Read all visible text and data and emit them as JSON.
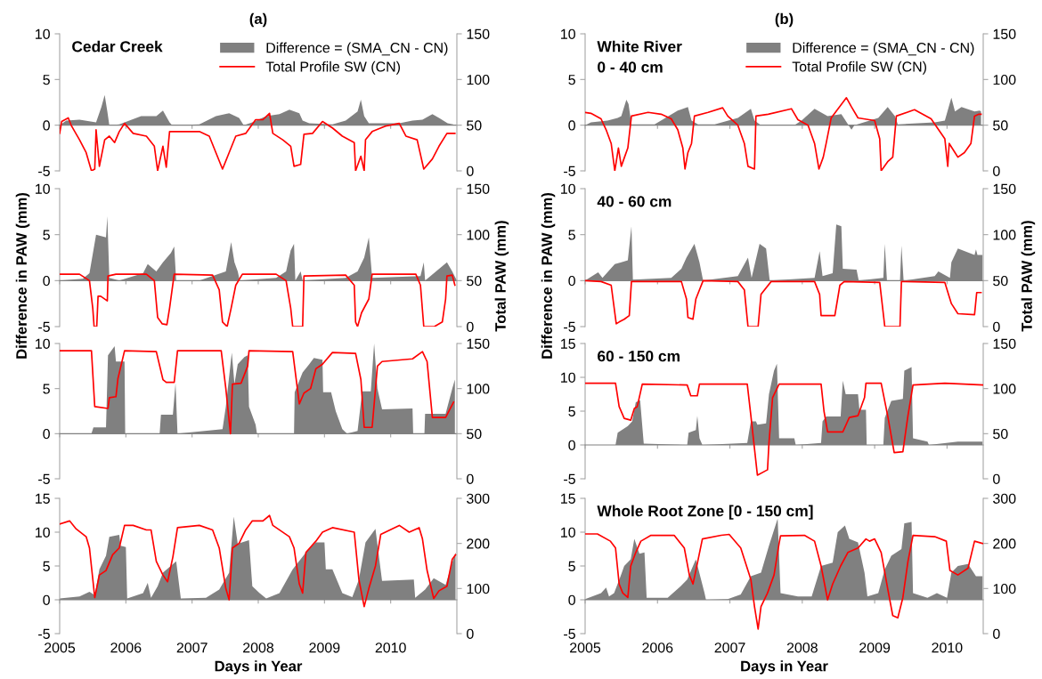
{
  "chart_data": [
    {
      "type": "line",
      "title": "(a)",
      "annotations": [
        "Cedar Creek"
      ],
      "legend": "top right",
      "tick_labels": "y",
      "xlim": [
        2005,
        2011
      ],
      "xticks": [
        2005,
        2006,
        2007,
        2008,
        2009,
        2010
      ],
      "ylim": [
        -5,
        10
      ],
      "yticks": [
        -5,
        0,
        5,
        10
      ],
      "y2lim": [
        0,
        150
      ],
      "y2ticks": [
        0,
        50,
        100,
        150
      ],
      "series": [
        {
          "name": "Difference = (SMA_CN - CN)",
          "type": "area",
          "color": "#808080",
          "x": [
            2005.0,
            2005.1,
            2005.3,
            2005.55,
            2005.63,
            2005.68,
            2005.72,
            2005.75,
            2005.9,
            2006.23,
            2006.46,
            2006.56,
            2006.66,
            2006.7,
            2007.11,
            2007.36,
            2007.56,
            2007.71,
            2007.78,
            2007.91,
            2008.12,
            2008.32,
            2008.47,
            2008.62,
            2008.67,
            2008.77,
            2009.12,
            2009.32,
            2009.5,
            2009.55,
            2009.6,
            2009.67,
            2010.13,
            2010.33,
            2010.48,
            2010.63,
            2010.73,
            2010.86,
            2011.0
          ],
          "values": [
            0,
            0.5,
            0.6,
            0.3,
            2.0,
            3.3,
            1.5,
            0,
            0.1,
            1.0,
            1.0,
            1.6,
            0.3,
            0,
            0.1,
            1.0,
            1.3,
            0.8,
            0,
            0.3,
            1.0,
            1.2,
            1.7,
            1.3,
            0.5,
            0.2,
            0.1,
            0.5,
            1.5,
            2.8,
            1.0,
            0.2,
            0.2,
            0.5,
            0.6,
            1.2,
            0.8,
            0.2,
            0
          ]
        },
        {
          "name": "Total Profile SW (CN)",
          "type": "line",
          "axis": "y2",
          "color": "#ff0000",
          "x": [
            2005.0,
            2005.03,
            2005.13,
            2005.18,
            2005.3,
            2005.4,
            2005.48,
            2005.53,
            2005.55,
            2005.6,
            2005.68,
            2005.75,
            2005.83,
            2005.9,
            2005.98,
            2006.11,
            2006.31,
            2006.43,
            2006.48,
            2006.56,
            2006.61,
            2006.66,
            2006.81,
            2007.11,
            2007.26,
            2007.36,
            2007.46,
            2007.56,
            2007.66,
            2007.81,
            2007.96,
            2008.07,
            2008.17,
            2008.22,
            2008.37,
            2008.49,
            2008.54,
            2008.64,
            2008.69,
            2008.82,
            2008.97,
            2009.12,
            2009.27,
            2009.45,
            2009.47,
            2009.55,
            2009.6,
            2009.62,
            2009.72,
            2009.92,
            2010.13,
            2010.23,
            2010.4,
            2010.5,
            2010.63,
            2010.73,
            2010.85,
            2010.97
          ],
          "values": [
            41,
            54,
            58,
            49,
            34,
            20,
            0,
            2,
            45,
            5,
            34,
            38,
            31,
            43,
            52,
            41,
            38,
            27,
            0,
            27,
            4,
            43,
            43,
            43,
            38,
            20,
            2,
            20,
            38,
            41,
            56,
            56,
            63,
            41,
            34,
            27,
            5,
            7,
            40,
            41,
            54,
            47,
            38,
            31,
            0,
            16,
            0,
            34,
            43,
            49,
            52,
            38,
            34,
            2,
            13,
            27,
            41,
            41
          ]
        }
      ]
    },
    {
      "type": "line",
      "title": "(b)",
      "annotations": [
        "White River",
        "0 - 40 cm"
      ],
      "legend": "top right",
      "tick_labels": "y",
      "xlim": [
        2005,
        2010.5
      ],
      "xticks": [
        2005,
        2006,
        2007,
        2008,
        2009,
        2010
      ],
      "ylim": [
        -5,
        10
      ],
      "yticks": [
        -5,
        0,
        5,
        10
      ],
      "y2lim": [
        0,
        150
      ],
      "y2ticks": [
        0,
        50,
        100,
        150
      ],
      "series": [
        {
          "name": "Difference = (SMA_CN - CN)",
          "type": "area",
          "color": "#808080",
          "x": [
            2005.0,
            2005.08,
            2005.31,
            2005.45,
            2005.5,
            2005.57,
            2005.6,
            2005.64,
            2005.96,
            2006.28,
            2006.42,
            2006.47,
            2006.56,
            2006.79,
            2007.11,
            2007.29,
            2007.34,
            2007.43,
            2007.89,
            2007.99,
            2008.17,
            2008.35,
            2008.54,
            2008.68,
            2008.72,
            2009.05,
            2009.18,
            2009.28,
            2009.32,
            2009.83,
            2009.97,
            2010.06,
            2010.11,
            2010.2,
            2010.38,
            2010.45,
            2010.47
          ],
          "values": [
            0,
            0.3,
            0.5,
            0.8,
            1.0,
            2.8,
            2.3,
            0.1,
            0.1,
            1.6,
            2.0,
            0.5,
            0.1,
            0.1,
            0.8,
            1.8,
            0.5,
            0,
            0,
            0.5,
            1.8,
            1.0,
            1.2,
            -0.5,
            0,
            0.8,
            2.0,
            1.0,
            0.1,
            0.3,
            0.5,
            3.0,
            1.5,
            2.0,
            1.5,
            1.6,
            1.5
          ]
        },
        {
          "name": "Total Profile SW (CN)",
          "type": "line",
          "axis": "y2",
          "color": "#ff0000",
          "x": [
            2005.0,
            2005.08,
            2005.22,
            2005.29,
            2005.36,
            2005.41,
            2005.46,
            2005.5,
            2005.54,
            2005.59,
            2005.64,
            2005.87,
            2006.05,
            2006.19,
            2006.28,
            2006.35,
            2006.38,
            2006.42,
            2006.47,
            2006.51,
            2006.7,
            2006.9,
            2006.97,
            2007.11,
            2007.2,
            2007.25,
            2007.34,
            2007.36,
            2007.53,
            2007.85,
            2007.94,
            2008.08,
            2008.17,
            2008.23,
            2008.29,
            2008.33,
            2008.4,
            2008.61,
            2008.68,
            2008.77,
            2009.0,
            2009.07,
            2009.09,
            2009.18,
            2009.25,
            2009.3,
            2009.55,
            2009.78,
            2009.97,
            2010.01,
            2010.03,
            2010.11,
            2010.15,
            2010.24,
            2010.33,
            2010.38,
            2010.44,
            2010.47
          ],
          "values": [
            64,
            63,
            57,
            45,
            30,
            0,
            25,
            5,
            14,
            25,
            60,
            64,
            62,
            57,
            45,
            25,
            2,
            20,
            30,
            60,
            64,
            69,
            60,
            50,
            30,
            5,
            2,
            60,
            62,
            68,
            56,
            50,
            30,
            2,
            15,
            30,
            58,
            80,
            70,
            58,
            55,
            35,
            0,
            10,
            15,
            60,
            67,
            57,
            35,
            5,
            30,
            20,
            15,
            20,
            30,
            60,
            62,
            62
          ]
        }
      ]
    },
    {
      "type": "line",
      "tick_labels": "y",
      "xlim": [
        2005,
        2011
      ],
      "xticks": [
        2005,
        2006,
        2007,
        2008,
        2009,
        2010
      ],
      "ylim": [
        -5,
        10
      ],
      "yticks": [
        -5,
        0,
        5,
        10
      ],
      "y2lim": [
        0,
        150
      ],
      "y2ticks": [
        0,
        50,
        100,
        150
      ],
      "series": [
        {
          "type": "area",
          "color": "#808080",
          "x": [
            2005.0,
            2005.35,
            2005.45,
            2005.55,
            2005.7,
            2005.72,
            2005.75,
            2005.9,
            2006.26,
            2006.33,
            2006.46,
            2006.56,
            2006.68,
            2006.73,
            2006.76,
            2007.11,
            2007.51,
            2007.59,
            2007.64,
            2007.69,
            2007.72,
            2008.27,
            2008.42,
            2008.49,
            2008.54,
            2008.56,
            2008.64,
            2008.67,
            2009.32,
            2009.5,
            2009.6,
            2009.67,
            2009.72,
            2010.45,
            2010.5,
            2010.52,
            2010.85,
            2010.93,
            2011.0
          ],
          "values": [
            0,
            0.2,
            0.8,
            5.0,
            4.7,
            7.0,
            0.3,
            0,
            0.8,
            1.8,
            1.0,
            2.0,
            3.0,
            3.7,
            0,
            0,
            1.0,
            4.2,
            2.0,
            1.0,
            0,
            0.3,
            1.0,
            3.3,
            4.0,
            0,
            1.0,
            0,
            0.3,
            1.0,
            2.5,
            4.7,
            0.3,
            0.5,
            2.0,
            0,
            2.0,
            1.0,
            0
          ]
        },
        {
          "type": "line",
          "axis": "y2",
          "color": "#ff0000",
          "x": [
            2005.0,
            2005.3,
            2005.45,
            2005.5,
            2005.52,
            2005.56,
            2005.58,
            2005.62,
            2005.72,
            2005.73,
            2005.85,
            2006.31,
            2006.43,
            2006.48,
            2006.55,
            2006.62,
            2006.66,
            2006.73,
            2007.31,
            2007.41,
            2007.46,
            2007.53,
            2007.59,
            2007.66,
            2007.76,
            2008.27,
            2008.42,
            2008.49,
            2008.52,
            2008.67,
            2008.69,
            2009.32,
            2009.45,
            2009.47,
            2009.5,
            2009.56,
            2009.67,
            2009.72,
            2010.38,
            2010.45,
            2010.5,
            2010.66,
            2010.78,
            2010.83,
            2010.85,
            2010.93,
            2010.97
          ],
          "values": [
            57,
            57,
            50,
            20,
            0,
            0,
            33,
            33,
            28,
            55,
            57,
            57,
            50,
            10,
            3,
            2,
            20,
            57,
            56,
            40,
            5,
            0,
            20,
            45,
            57,
            57,
            50,
            20,
            0,
            0,
            55,
            56,
            45,
            5,
            0,
            15,
            30,
            57,
            57,
            45,
            0,
            0,
            5,
            30,
            55,
            56,
            45
          ]
        }
      ]
    },
    {
      "type": "line",
      "annotations": [
        "40 - 60 cm"
      ],
      "tick_labels": "y",
      "xlim": [
        2005,
        2010.5
      ],
      "xticks": [
        2005,
        2006,
        2007,
        2008,
        2009,
        2010
      ],
      "ylim": [
        -5,
        10
      ],
      "yticks": [
        -5,
        0,
        5,
        10
      ],
      "y2lim": [
        0,
        150
      ],
      "y2ticks": [
        0,
        50,
        100,
        150
      ],
      "series": [
        {
          "type": "area",
          "color": "#808080",
          "x": [
            2005.0,
            2005.18,
            2005.24,
            2005.41,
            2005.5,
            2005.59,
            2005.64,
            2005.66,
            2006.19,
            2006.33,
            2006.4,
            2006.51,
            2006.58,
            2006.63,
            2007.11,
            2007.25,
            2007.3,
            2007.41,
            2007.5,
            2007.55,
            2008.17,
            2008.24,
            2008.28,
            2008.42,
            2008.47,
            2008.54,
            2008.56,
            2008.75,
            2008.78,
            2009.12,
            2009.14,
            2009.17,
            2009.35,
            2009.37,
            2009.4,
            2009.83,
            2009.88,
            2010.04,
            2010.06,
            2010.15,
            2010.38,
            2010.4,
            2010.42,
            2010.49
          ],
          "values": [
            0,
            0.9,
            0.3,
            1.8,
            2.0,
            2.2,
            5.9,
            0.1,
            0.3,
            1.3,
            2.5,
            4.0,
            2.0,
            0,
            0.5,
            2.5,
            0.3,
            4.0,
            3.5,
            0,
            0.3,
            3.2,
            0.5,
            0.8,
            6.1,
            5.9,
            1.3,
            1.2,
            0,
            0.3,
            4.0,
            0,
            0,
            3.8,
            0,
            0.5,
            1.0,
            0.3,
            2.0,
            3.5,
            2.8,
            3.4,
            2.8,
            2.8
          ]
        },
        {
          "type": "line",
          "axis": "y2",
          "color": "#ff0000",
          "x": [
            2005.0,
            2005.22,
            2005.36,
            2005.43,
            2005.47,
            2005.54,
            2005.61,
            2005.64,
            2006.33,
            2006.4,
            2006.42,
            2006.49,
            2006.53,
            2006.63,
            2007.11,
            2007.2,
            2007.25,
            2007.39,
            2007.43,
            2007.57,
            2008.17,
            2008.24,
            2008.26,
            2008.45,
            2008.52,
            2008.58,
            2009.07,
            2009.14,
            2009.35,
            2009.37,
            2009.97,
            2010.06,
            2010.15,
            2010.38,
            2010.41,
            2010.47
          ],
          "values": [
            50,
            49,
            45,
            3,
            5,
            8,
            12,
            49,
            49,
            30,
            10,
            8,
            30,
            50,
            49,
            40,
            0,
            0,
            35,
            49,
            49,
            35,
            12,
            12,
            45,
            49,
            48,
            0,
            0,
            49,
            48,
            25,
            14,
            13,
            37,
            37
          ]
        }
      ]
    },
    {
      "type": "line",
      "tick_labels": "y",
      "ylabel": "Difference in PAW (mm)",
      "y2label": "Total PAW (mm)",
      "xlim": [
        2005,
        2011
      ],
      "xticks": [
        2005,
        2006,
        2007,
        2008,
        2009,
        2010
      ],
      "ylim": [
        -5,
        10
      ],
      "yticks": [
        -5,
        0,
        5,
        10
      ],
      "y2lim": [
        0,
        150
      ],
      "y2ticks": [
        0,
        50,
        100,
        150
      ],
      "series": [
        {
          "type": "area",
          "color": "#808080",
          "x": [
            2005.0,
            2005.48,
            2005.51,
            2005.7,
            2005.73,
            2005.83,
            2005.85,
            2005.98,
            2005.99,
            2006.51,
            2006.53,
            2006.71,
            2006.75,
            2006.78,
            2007.46,
            2007.51,
            2007.6,
            2007.64,
            2007.69,
            2007.79,
            2007.84,
            2007.86,
            2007.96,
            2007.98,
            2008.54,
            2008.55,
            2008.67,
            2008.77,
            2008.84,
            2008.97,
            2008.98,
            2009.1,
            2009.17,
            2009.27,
            2009.34,
            2009.5,
            2009.57,
            2009.7,
            2009.75,
            2009.8,
            2009.87,
            2010.33,
            2010.34,
            2010.51,
            2010.52,
            2010.83,
            2010.93,
            2010.97
          ],
          "values": [
            0,
            0,
            0.7,
            0.7,
            8.7,
            9.7,
            8.0,
            8.0,
            0,
            0,
            2.1,
            2.1,
            5.6,
            0,
            0.5,
            3.0,
            9.0,
            5.5,
            7.7,
            8.5,
            8.7,
            3.0,
            1.0,
            0,
            0,
            4.6,
            6.8,
            7.7,
            8.4,
            8.2,
            4.6,
            4.6,
            2.5,
            0.5,
            0,
            0.3,
            4.7,
            4.7,
            10.0,
            5.0,
            2.7,
            2.8,
            0,
            0,
            2.2,
            2.2,
            5.0,
            6.0
          ]
        },
        {
          "type": "line",
          "axis": "y2",
          "color": "#ff0000",
          "x": [
            2005.0,
            2005.48,
            2005.53,
            2005.73,
            2005.75,
            2005.85,
            2005.88,
            2005.98,
            2006.46,
            2006.56,
            2006.61,
            2006.73,
            2006.78,
            2007.44,
            2007.51,
            2007.58,
            2007.61,
            2007.74,
            2007.84,
            2007.86,
            2008.52,
            2008.62,
            2008.69,
            2008.79,
            2008.87,
            2008.97,
            2009.12,
            2009.47,
            2009.55,
            2009.6,
            2009.72,
            2009.8,
            2009.87,
            2010.33,
            2010.48,
            2010.55,
            2010.63,
            2010.83,
            2010.95
          ],
          "values": [
            142,
            142,
            80,
            78,
            90,
            91,
            111,
            142,
            141,
            110,
            107,
            107,
            142,
            142,
            100,
            50,
            105,
            106,
            125,
            142,
            141,
            83,
            95,
            100,
            122,
            127,
            140,
            139,
            110,
            57,
            57,
            125,
            130,
            133,
            141,
            130,
            68,
            68,
            85
          ]
        }
      ]
    },
    {
      "type": "line",
      "annotations": [
        "60 - 150 cm"
      ],
      "tick_labels": "y",
      "ylabel": "Difference in PAW (mm)",
      "y2label": "Total PAW (mm)",
      "xlim": [
        2005,
        2010.5
      ],
      "xticks": [
        2005,
        2006,
        2007,
        2008,
        2009,
        2010
      ],
      "ylim": [
        -5,
        15
      ],
      "yticks": [
        -5,
        0,
        5,
        10,
        15
      ],
      "y2lim": [
        0,
        150
      ],
      "y2ticks": [
        0,
        50,
        100,
        150
      ],
      "series": [
        {
          "type": "area",
          "color": "#808080",
          "x": [
            2005.0,
            2005.42,
            2005.45,
            2005.59,
            2005.65,
            2005.7,
            2005.76,
            2005.81,
            2006.41,
            2006.43,
            2006.53,
            2006.55,
            2006.58,
            2006.62,
            2007.24,
            2007.29,
            2007.36,
            2007.38,
            2007.5,
            2007.54,
            2007.61,
            2007.65,
            2007.68,
            2007.89,
            2007.91,
            2008.26,
            2008.28,
            2008.33,
            2008.53,
            2008.56,
            2008.6,
            2008.77,
            2008.79,
            2008.88,
            2008.89,
            2009.12,
            2009.14,
            2009.23,
            2009.39,
            2009.41,
            2009.51,
            2009.53,
            2009.73,
            2009.75,
            2010.15,
            2010.49
          ],
          "values": [
            0,
            0,
            1.8,
            2.8,
            3.5,
            6.3,
            6.6,
            0.2,
            0,
            1.8,
            2.2,
            4.3,
            1.0,
            0,
            0.3,
            3.5,
            3.5,
            3.0,
            3.2,
            7.5,
            11.0,
            12.0,
            1.0,
            1.0,
            0,
            0.3,
            3.5,
            4.2,
            4.2,
            9.5,
            7.5,
            7.5,
            5.2,
            5.2,
            0,
            0,
            4.0,
            6.5,
            6.8,
            11.0,
            11.5,
            1.0,
            0.5,
            0,
            0.5,
            0.5
          ]
        },
        {
          "type": "line",
          "axis": "y2",
          "color": "#ff0000",
          "x": [
            2005.0,
            2005.42,
            2005.47,
            2005.54,
            2005.63,
            2005.68,
            2005.72,
            2005.79,
            2006.41,
            2006.46,
            2006.55,
            2006.58,
            2007.24,
            2007.29,
            2007.38,
            2007.52,
            2007.54,
            2007.59,
            2007.68,
            2008.26,
            2008.3,
            2008.35,
            2008.56,
            2008.65,
            2008.77,
            2008.86,
            2008.88,
            2009.09,
            2009.18,
            2009.27,
            2009.39,
            2009.46,
            2009.53,
            2009.97,
            2010.49
          ],
          "values": [
            106,
            106,
            80,
            67,
            65,
            78,
            80,
            105,
            104,
            92,
            92,
            105,
            105,
            70,
            4,
            10,
            40,
            90,
            105,
            105,
            75,
            52,
            52,
            68,
            70,
            90,
            106,
            106,
            70,
            29,
            30,
            70,
            104,
            106,
            104
          ]
        }
      ]
    },
    {
      "type": "line",
      "xlabel": "Days in Year",
      "xlim": [
        2005,
        2011
      ],
      "xticks": [
        2005,
        2006,
        2007,
        2008,
        2009,
        2010
      ],
      "ylim": [
        -5,
        15
      ],
      "yticks": [
        -5,
        0,
        5,
        10,
        15
      ],
      "y2lim": [
        0,
        300
      ],
      "y2ticks": [
        0,
        100,
        200,
        300
      ],
      "series": [
        {
          "type": "area",
          "color": "#808080",
          "x": [
            2005.0,
            2005.3,
            2005.45,
            2005.53,
            2005.6,
            2005.7,
            2005.75,
            2005.9,
            2005.92,
            2006.0,
            2006.02,
            2006.26,
            2006.33,
            2006.38,
            2006.48,
            2006.56,
            2006.76,
            2006.83,
            2007.21,
            2007.41,
            2007.56,
            2007.63,
            2007.69,
            2007.86,
            2007.91,
            2008.02,
            2008.12,
            2008.32,
            2008.52,
            2008.72,
            2008.87,
            2009.0,
            2009.02,
            2009.12,
            2009.27,
            2009.42,
            2009.52,
            2009.62,
            2009.77,
            2009.87,
            2010.35,
            2010.37,
            2010.52,
            2010.65,
            2010.83,
            2010.93,
            2010.98
          ],
          "values": [
            0.2,
            0.5,
            1.2,
            0.7,
            4.5,
            6.5,
            9.3,
            9.6,
            8.0,
            7.8,
            0.2,
            1.0,
            2.5,
            0.3,
            2.0,
            4.0,
            5.7,
            0.2,
            0.3,
            1.5,
            4.0,
            12.3,
            8.3,
            8.8,
            2.0,
            1.0,
            0.2,
            1.0,
            4.5,
            7.0,
            8.5,
            8.5,
            4.5,
            4.5,
            1.0,
            0.4,
            3.0,
            8.5,
            10.5,
            2.8,
            3.0,
            0.3,
            1.5,
            3.2,
            2.2,
            5.5,
            7.0
          ]
        },
        {
          "type": "line",
          "axis": "y2",
          "color": "#ff0000",
          "x": [
            2005.0,
            2005.15,
            2005.25,
            2005.4,
            2005.45,
            2005.53,
            2005.6,
            2005.7,
            2005.8,
            2005.9,
            2005.98,
            2006.11,
            2006.31,
            2006.38,
            2006.46,
            2006.56,
            2006.63,
            2006.71,
            2006.78,
            2007.11,
            2007.31,
            2007.41,
            2007.51,
            2007.56,
            2007.61,
            2007.71,
            2007.81,
            2007.91,
            2008.07,
            2008.17,
            2008.22,
            2008.47,
            2008.54,
            2008.62,
            2008.67,
            2008.72,
            2008.87,
            2008.97,
            2009.12,
            2009.45,
            2009.52,
            2009.6,
            2009.67,
            2009.77,
            2009.85,
            2010.13,
            2010.28,
            2010.43,
            2010.48,
            2010.55,
            2010.65,
            2010.73,
            2010.85,
            2010.93,
            2010.98
          ],
          "values": [
            243,
            250,
            232,
            215,
            190,
            80,
            130,
            140,
            175,
            190,
            240,
            240,
            230,
            230,
            160,
            130,
            115,
            170,
            235,
            240,
            230,
            190,
            100,
            75,
            190,
            200,
            230,
            250,
            250,
            262,
            240,
            215,
            190,
            110,
            90,
            180,
            205,
            225,
            235,
            225,
            120,
            60,
            100,
            150,
            220,
            240,
            225,
            235,
            210,
            140,
            78,
            95,
            105,
            165,
            175
          ]
        }
      ]
    },
    {
      "type": "line",
      "annotations": [
        "Whole Root Zone [0 - 150 cm]"
      ],
      "xlabel": "Days in Year",
      "xlim": [
        2005,
        2010.5
      ],
      "xticks": [
        2005,
        2006,
        2007,
        2008,
        2009,
        2010
      ],
      "ylim": [
        -5,
        15
      ],
      "yticks": [
        -5,
        0,
        5,
        10,
        15
      ],
      "y2lim": [
        0,
        300
      ],
      "y2ticks": [
        0,
        100,
        200,
        300
      ],
      "series": [
        {
          "type": "area",
          "color": "#808080",
          "x": [
            2005.0,
            2005.22,
            2005.29,
            2005.33,
            2005.4,
            2005.49,
            2005.54,
            2005.63,
            2005.68,
            2005.75,
            2005.82,
            2005.85,
            2006.14,
            2006.32,
            2006.41,
            2006.53,
            2006.65,
            2006.67,
            2006.97,
            2007.15,
            2007.29,
            2007.43,
            2007.54,
            2007.66,
            2007.7,
            2007.94,
            2008.13,
            2008.26,
            2008.42,
            2008.49,
            2008.59,
            2008.65,
            2008.77,
            2008.86,
            2008.9,
            2009.05,
            2009.14,
            2009.23,
            2009.37,
            2009.41,
            2009.51,
            2009.53,
            2009.73,
            2009.86,
            2010.0,
            2010.06,
            2010.15,
            2010.29,
            2010.4,
            2010.49
          ],
          "values": [
            0.1,
            1.0,
            1.8,
            0.5,
            1.0,
            3.5,
            5.0,
            6.0,
            9.0,
            6.8,
            7.0,
            0.3,
            0.3,
            2.0,
            3.0,
            6.0,
            1.0,
            0,
            0.1,
            0.8,
            3.5,
            4.0,
            8.0,
            12.0,
            1.0,
            0.5,
            0.5,
            5.0,
            5.5,
            10.0,
            11.0,
            9.0,
            8.5,
            4.0,
            0.5,
            1.0,
            4.5,
            6.5,
            7.5,
            11.3,
            11.5,
            1.0,
            0.3,
            1.0,
            0.3,
            4.0,
            5.0,
            5.3,
            3.5,
            3.5
          ]
        },
        {
          "type": "line",
          "axis": "y2",
          "color": "#ff0000",
          "x": [
            2005.0,
            2005.17,
            2005.35,
            2005.42,
            2005.47,
            2005.52,
            2005.59,
            2005.63,
            2005.7,
            2005.77,
            2005.91,
            2006.23,
            2006.37,
            2006.44,
            2006.49,
            2006.53,
            2006.62,
            2006.88,
            2006.99,
            2007.15,
            2007.29,
            2007.34,
            2007.39,
            2007.43,
            2007.52,
            2007.61,
            2007.68,
            2007.7,
            2008.03,
            2008.17,
            2008.26,
            2008.35,
            2008.42,
            2008.53,
            2008.63,
            2008.77,
            2008.88,
            2008.93,
            2009.0,
            2009.09,
            2009.18,
            2009.25,
            2009.32,
            2009.39,
            2009.46,
            2009.53,
            2009.83,
            2009.99,
            2010.04,
            2010.15,
            2010.29,
            2010.38,
            2010.49
          ],
          "values": [
            221,
            221,
            205,
            190,
            110,
            90,
            80,
            150,
            180,
            205,
            218,
            218,
            190,
            130,
            110,
            140,
            210,
            218,
            220,
            190,
            120,
            60,
            10,
            60,
            90,
            130,
            200,
            217,
            218,
            205,
            150,
            75,
            110,
            150,
            180,
            190,
            210,
            205,
            210,
            180,
            100,
            40,
            35,
            80,
            160,
            218,
            215,
            205,
            140,
            130,
            145,
            205,
            200
          ]
        }
      ]
    }
  ]
}
